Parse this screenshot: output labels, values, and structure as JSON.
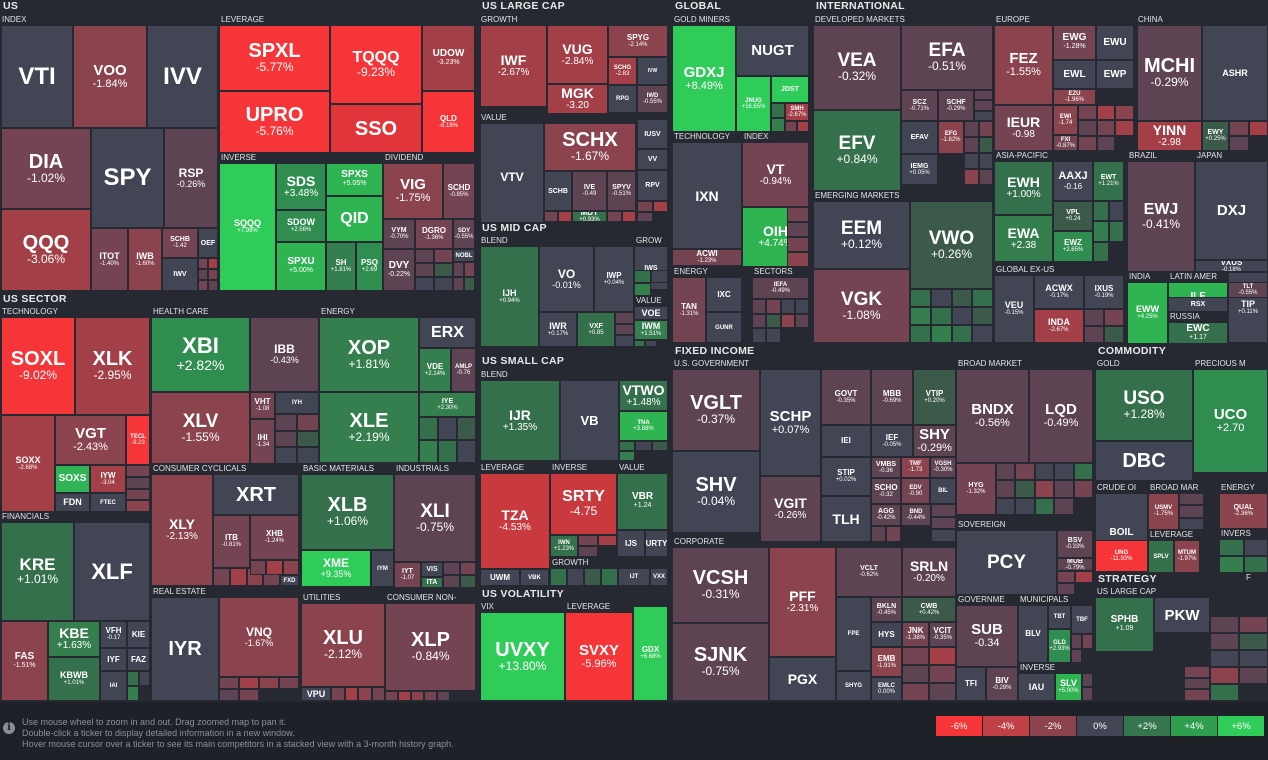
{
  "colors": {
    "-6": "#f63538",
    "-5": "#e4353a",
    "-4": "#bf4045",
    "-3": "#a94148",
    "-2": "#8b444e",
    "-1": "#6c4451",
    "-0.5": "#5a4452",
    "0": "#414554",
    "0.5": "#3c5148",
    "1": "#35764e",
    "1.5": "#3a7f4f",
    "2": "#2f9e4f",
    "3": "#30b455",
    "4": "#30cc5a",
    "6": "#30d85a"
  },
  "groups": [
    {
      "key": "us",
      "label": "US"
    },
    {
      "key": "ussector",
      "label": "US SECTOR"
    },
    {
      "key": "uslarge",
      "label": "US LARGE CAP"
    },
    {
      "key": "usmid",
      "label": "US MID CAP"
    },
    {
      "key": "ussmall",
      "label": "US SMALL CAP"
    },
    {
      "key": "usvol",
      "label": "US VOLATILITY"
    },
    {
      "key": "global",
      "label": "GLOBAL"
    },
    {
      "key": "intl",
      "label": "INTERNATIONAL"
    },
    {
      "key": "fixed",
      "label": "FIXED INCOME"
    },
    {
      "key": "commodity",
      "label": "COMMODITY"
    },
    {
      "key": "strategy",
      "label": "STRATEGY"
    }
  ],
  "subgroups": {
    "index": "INDEX",
    "leverage": "LEVERAGE",
    "inverse": "INVERSE",
    "dividend": "DIVIDEND",
    "technology": "TECHNOLOGY",
    "healthcare": "HEALTH CARE",
    "energy": "ENERGY",
    "consumer_cyclicals": "CONSUMER CYCLICALS",
    "basic_materials": "BASIC MATERIALS",
    "industrials": "INDUSTRIALS",
    "financials": "FINANCIALS",
    "real_estate": "REAL ESTATE",
    "utilities": "UTILITIES",
    "consumer_non": "CONSUMER NON-",
    "growth": "GROWTH",
    "value": "VALUE",
    "blend": "BLEND",
    "grow": "GROW",
    "lev2": "LEVERAGE",
    "inv2": "INVERSE",
    "val2": "VALUE",
    "growth2": "GROWTH",
    "vix": "VIX",
    "lev3": "LEVERAGE",
    "gold_miners": "GOLD MINERS",
    "tech2": "TECHNOLOGY",
    "index2": "INDEX",
    "energy2": "ENERGY",
    "sectors": "SECTORS",
    "developed": "DEVELOPED MARKETS",
    "emerging": "EMERGING MARKETS",
    "europe": "EUROPE",
    "china": "CHINA",
    "asia_pacific": "ASIA-PACIFIC",
    "brazil": "BRAZIL",
    "japan": "JAPAN",
    "global_ex_us": "GLOBAL EX-US",
    "india": "INDIA",
    "latin_amer": "LATIN AMER",
    "russia": "RUSSIA",
    "us_government": "U.S. GOVERNMENT",
    "broad_market": "BROAD MARKET",
    "corporate": "CORPORATE",
    "sovereign": "SOVEREIGN",
    "governme": "GOVERNME",
    "municipals": "MUNICIPALS",
    "inverse3": "INVERSE",
    "gold": "GOLD",
    "precious": "PRECIOUS M",
    "crude": "CRUDE OI",
    "broad_mar": "BROAD MAR",
    "energy3": "ENERGY",
    "lev4": "LEVERAGE",
    "invers": "INVERS",
    "us_large_cap2": "US LARGE CAP",
    "f": "F"
  },
  "tickers": [
    {
      "t": "VTI",
      "c": ""
    },
    {
      "t": "VOO",
      "c": "-1.84%"
    },
    {
      "t": "IVV",
      "c": ""
    },
    {
      "t": "DIA",
      "c": "-1.02%"
    },
    {
      "t": "SPY",
      "c": ""
    },
    {
      "t": "RSP",
      "c": "-0.26%"
    },
    {
      "t": "QQQ",
      "c": "-3.06%"
    },
    {
      "t": "ITOT",
      "c": "-1.40%"
    },
    {
      "t": "IWB",
      "c": "-1.60%"
    },
    {
      "t": "SCHB",
      "c": "-1.42"
    },
    {
      "t": "OEF",
      "c": ""
    },
    {
      "t": "IWV",
      "c": ""
    },
    {
      "t": "SPXL",
      "c": "-5.77%"
    },
    {
      "t": "TQQQ",
      "c": "-9.23%"
    },
    {
      "t": "UDOW",
      "c": "-3.23%"
    },
    {
      "t": "UPRO",
      "c": "-5.76%"
    },
    {
      "t": "SSO",
      "c": ""
    },
    {
      "t": "QLD",
      "c": "-6.18%"
    },
    {
      "t": "SQQQ",
      "c": "+7.96%"
    },
    {
      "t": "SDS",
      "c": "+3.48%"
    },
    {
      "t": "SPXS",
      "c": "+5.05%"
    },
    {
      "t": "SDOW",
      "c": "+2.56%"
    },
    {
      "t": "QID",
      "c": ""
    },
    {
      "t": "SPXU",
      "c": "+5.00%"
    },
    {
      "t": "SH",
      "c": "+1.81%"
    },
    {
      "t": "PSQ",
      "c": "+2.69"
    },
    {
      "t": "VIG",
      "c": "-1.75%"
    },
    {
      "t": "SCHD",
      "c": "-0.85%"
    },
    {
      "t": "VYM",
      "c": "-0.70%"
    },
    {
      "t": "DGRO",
      "c": "-1.36%"
    },
    {
      "t": "SDY",
      "c": "-0.55%"
    },
    {
      "t": "NOBL",
      "c": ""
    },
    {
      "t": "DVY",
      "c": "-0.22%"
    },
    {
      "t": "SOXL",
      "c": "-9.02%"
    },
    {
      "t": "XLK",
      "c": "-2.95%"
    },
    {
      "t": "SOXX",
      "c": "-2.68%"
    },
    {
      "t": "VGT",
      "c": "-2.43%"
    },
    {
      "t": "TECL",
      "c": "-9.23"
    },
    {
      "t": "SOXS",
      "c": ""
    },
    {
      "t": "IYW",
      "c": "-3.04"
    },
    {
      "t": "FDN",
      "c": ""
    },
    {
      "t": "FTEC",
      "c": ""
    },
    {
      "t": "XBI",
      "c": "+2.82%"
    },
    {
      "t": "IBB",
      "c": "-0.43%"
    },
    {
      "t": "XLV",
      "c": "-1.55%"
    },
    {
      "t": "VHT",
      "c": "-1.08"
    },
    {
      "t": "IYH",
      "c": ""
    },
    {
      "t": "IHI",
      "c": "-1.34"
    },
    {
      "t": "XOP",
      "c": "+1.81%"
    },
    {
      "t": "ERX",
      "c": ""
    },
    {
      "t": "VDE",
      "c": "+2.14%"
    },
    {
      "t": "AMLP",
      "c": "-0.76"
    },
    {
      "t": "XLE",
      "c": "+2.19%"
    },
    {
      "t": "IYE",
      "c": "+2.30%"
    },
    {
      "t": "XRT",
      "c": ""
    },
    {
      "t": "XLY",
      "c": "-2.13%"
    },
    {
      "t": "ITB",
      "c": "-0.81%"
    },
    {
      "t": "XHB",
      "c": "-1.24%"
    },
    {
      "t": "FXD",
      "c": ""
    },
    {
      "t": "XLB",
      "c": "+1.06%"
    },
    {
      "t": "XME",
      "c": "+9.35%"
    },
    {
      "t": "IYM",
      "c": ""
    },
    {
      "t": "XLI",
      "c": "-0.75%"
    },
    {
      "t": "IYT",
      "c": "-1.07"
    },
    {
      "t": "VIS",
      "c": ""
    },
    {
      "t": "ITA",
      "c": ""
    },
    {
      "t": "KRE",
      "c": "+1.01%"
    },
    {
      "t": "XLF",
      "c": ""
    },
    {
      "t": "FAS",
      "c": "-1.51%"
    },
    {
      "t": "KBE",
      "c": "+1.63%"
    },
    {
      "t": "VFH",
      "c": "-0.17"
    },
    {
      "t": "KIE",
      "c": ""
    },
    {
      "t": "IYF",
      "c": ""
    },
    {
      "t": "FAZ",
      "c": ""
    },
    {
      "t": "KBWB",
      "c": "+1.01%"
    },
    {
      "t": "IAI",
      "c": ""
    },
    {
      "t": "IYR",
      "c": ""
    },
    {
      "t": "VNQ",
      "c": "-1.67%"
    },
    {
      "t": "XLU",
      "c": "-2.12%"
    },
    {
      "t": "VPU",
      "c": ""
    },
    {
      "t": "XLP",
      "c": "-0.84%"
    },
    {
      "t": "IWF",
      "c": "-2.67%"
    },
    {
      "t": "VUG",
      "c": "-2.84%"
    },
    {
      "t": "SPYG",
      "c": "-2.14%"
    },
    {
      "t": "SCHG",
      "c": "-2.83"
    },
    {
      "t": "IVW",
      "c": ""
    },
    {
      "t": "MGK",
      "c": "-3.20"
    },
    {
      "t": "RPG",
      "c": ""
    },
    {
      "t": "IWD",
      "c": "-0.55%"
    },
    {
      "t": "VTV",
      "c": ""
    },
    {
      "t": "SCHX",
      "c": "-1.67%"
    },
    {
      "t": "SCHB",
      "c": ""
    },
    {
      "t": "IVE",
      "c": "-0.49"
    },
    {
      "t": "SPYV",
      "c": "-0.51%"
    },
    {
      "t": "IUSV",
      "c": ""
    },
    {
      "t": "VV",
      "c": ""
    },
    {
      "t": "RPV",
      "c": ""
    },
    {
      "t": "MDY",
      "c": "+0.93%"
    },
    {
      "t": "IJH",
      "c": "+0.94%"
    },
    {
      "t": "VO",
      "c": "-0.01%"
    },
    {
      "t": "IWP",
      "c": "+0.04%"
    },
    {
      "t": "IWR",
      "c": "+0.17%"
    },
    {
      "t": "VXF",
      "c": "+0.85"
    },
    {
      "t": "IWS",
      "c": ""
    },
    {
      "t": "VOE",
      "c": ""
    },
    {
      "t": "IWM",
      "c": "+1.51%"
    },
    {
      "t": "IJR",
      "c": "+1.35%"
    },
    {
      "t": "VB",
      "c": ""
    },
    {
      "t": "VTWO",
      "c": "+1.48%"
    },
    {
      "t": "TNA",
      "c": "+3.88%"
    },
    {
      "t": "TZA",
      "c": "-4.53%"
    },
    {
      "t": "SRTY",
      "c": "-4.75"
    },
    {
      "t": "IWN",
      "c": "+1.23%"
    },
    {
      "t": "VBR",
      "c": "+1.24"
    },
    {
      "t": "IJS",
      "c": ""
    },
    {
      "t": "URTY",
      "c": ""
    },
    {
      "t": "UWM",
      "c": ""
    },
    {
      "t": "VBK",
      "c": ""
    },
    {
      "t": "IJT",
      "c": ""
    },
    {
      "t": "VXX",
      "c": ""
    },
    {
      "t": "UVXY",
      "c": "+13.80%"
    },
    {
      "t": "SVXY",
      "c": "-5.96%"
    },
    {
      "t": "GDX",
      "c": "+6.68%"
    },
    {
      "t": "GDXJ",
      "c": "+8.49%"
    },
    {
      "t": "NUGT",
      "c": ""
    },
    {
      "t": "JNUG",
      "c": "+16.65%"
    },
    {
      "t": "JDST",
      "c": ""
    },
    {
      "t": "SMH",
      "c": "-2.67%"
    },
    {
      "t": "IXN",
      "c": ""
    },
    {
      "t": "ACWI",
      "c": "-1.23%"
    },
    {
      "t": "VT",
      "c": "-0.94%"
    },
    {
      "t": "OIH",
      "c": "+4.74%"
    },
    {
      "t": "TAN",
      "c": "-1.31%"
    },
    {
      "t": "IXC",
      "c": ""
    },
    {
      "t": "GUNR",
      "c": ""
    },
    {
      "t": "IEFA",
      "c": "-0.49%"
    },
    {
      "t": "VEA",
      "c": "-0.32%"
    },
    {
      "t": "EFA",
      "c": "-0.51%"
    },
    {
      "t": "EFV",
      "c": "+0.84%"
    },
    {
      "t": "SCZ",
      "c": "-0.71%"
    },
    {
      "t": "SCHF",
      "c": "-0.29%"
    },
    {
      "t": "EFAV",
      "c": ""
    },
    {
      "t": "EFG",
      "c": "-1.82%"
    },
    {
      "t": "IEMG",
      "c": "+0.05%"
    },
    {
      "t": "EEM",
      "c": "+0.12%"
    },
    {
      "t": "VWO",
      "c": "+0.26%"
    },
    {
      "t": "VGK",
      "c": "-1.08%"
    },
    {
      "t": "FEZ",
      "c": "-1.55%"
    },
    {
      "t": "EWG",
      "c": "-1.28%"
    },
    {
      "t": "EWU",
      "c": ""
    },
    {
      "t": "EWL",
      "c": ""
    },
    {
      "t": "EWP",
      "c": ""
    },
    {
      "t": "EZU",
      "c": "-1.96%"
    },
    {
      "t": "IEUR",
      "c": "-0.98"
    },
    {
      "t": "EWI",
      "c": "-1.74"
    },
    {
      "t": "FXI",
      "c": "-0.87%"
    },
    {
      "t": "MCHI",
      "c": "-0.29%"
    },
    {
      "t": "ASHR",
      "c": ""
    },
    {
      "t": "YINN",
      "c": "-2.98"
    },
    {
      "t": "EWY",
      "c": "+0.25%"
    },
    {
      "t": "EWH",
      "c": "+1.00%"
    },
    {
      "t": "AAXJ",
      "c": "-0.16"
    },
    {
      "t": "EWT",
      "c": "+1.21%"
    },
    {
      "t": "EWA",
      "c": "+2.38"
    },
    {
      "t": "VPL",
      "c": "+0.24"
    },
    {
      "t": "EWZ",
      "c": "+2.65%"
    },
    {
      "t": "EWJ",
      "c": "-0.41%"
    },
    {
      "t": "DXJ",
      "c": ""
    },
    {
      "t": "VXUS",
      "c": "-0.18%"
    },
    {
      "t": "VEU",
      "c": "-0.15%"
    },
    {
      "t": "ACWX",
      "c": "-0.17%"
    },
    {
      "t": "IXUS",
      "c": "-0.19%"
    },
    {
      "t": "INDA",
      "c": "-2.67%"
    },
    {
      "t": "EWW",
      "c": "+4.25%"
    },
    {
      "t": "ILF",
      "c": ""
    },
    {
      "t": "RSX",
      "c": ""
    },
    {
      "t": "EWC",
      "c": "+1.17"
    },
    {
      "t": "TIP",
      "c": "+0.11%"
    },
    {
      "t": "TLT",
      "c": "-0.55%"
    },
    {
      "t": "VGLT",
      "c": "-0.37%"
    },
    {
      "t": "SCHP",
      "c": "+0.07%"
    },
    {
      "t": "GOVT",
      "c": "-0.35%"
    },
    {
      "t": "MBB",
      "c": "-0.69%"
    },
    {
      "t": "VTIP",
      "c": "+0.20%"
    },
    {
      "t": "IEI",
      "c": ""
    },
    {
      "t": "IEF",
      "c": "-0.05%"
    },
    {
      "t": "SHY",
      "c": "-0.29%"
    },
    {
      "t": "SHV",
      "c": "-0.04%"
    },
    {
      "t": "STIP",
      "c": "+0.02%"
    },
    {
      "t": "VMBS",
      "c": "-0.36"
    },
    {
      "t": "TMF",
      "c": "-1.73"
    },
    {
      "t": "VGSH",
      "c": "-0.30%"
    },
    {
      "t": "SCHO",
      "c": "-0.32"
    },
    {
      "t": "EDV",
      "c": "-0.90"
    },
    {
      "t": "BIL",
      "c": ""
    },
    {
      "t": "VGIT",
      "c": "-0.26%"
    },
    {
      "t": "TLH",
      "c": ""
    },
    {
      "t": "AGG",
      "c": "-0.42%"
    },
    {
      "t": "BND",
      "c": "-0.44%"
    },
    {
      "t": "BNDX",
      "c": "-0.56%"
    },
    {
      "t": "LQD",
      "c": "-0.49%"
    },
    {
      "t": "HYG",
      "c": "-1.32%"
    },
    {
      "t": "VCSH",
      "c": "-0.31%"
    },
    {
      "t": "PFF",
      "c": "-2.31%"
    },
    {
      "t": "VCLT",
      "c": "-0.62%"
    },
    {
      "t": "SRLN",
      "c": "-0.20%"
    },
    {
      "t": "BKLN",
      "c": "-0.45%"
    },
    {
      "t": "CWB",
      "c": "+0.42%"
    },
    {
      "t": "FPE",
      "c": ""
    },
    {
      "t": "HYS",
      "c": ""
    },
    {
      "t": "JNK",
      "c": "-1.38%"
    },
    {
      "t": "VCIT",
      "c": "-0.35%"
    },
    {
      "t": "SJNK",
      "c": "-0.75%"
    },
    {
      "t": "PGX",
      "c": ""
    },
    {
      "t": "SHYG",
      "c": ""
    },
    {
      "t": "EMB",
      "c": "-1.91%"
    },
    {
      "t": "EMLC",
      "c": "0.00%"
    },
    {
      "t": "PCY",
      "c": ""
    },
    {
      "t": "BSV",
      "c": "-0.33%"
    },
    {
      "t": "MUB",
      "c": "-0.79%"
    },
    {
      "t": "SUB",
      "c": "-0.34"
    },
    {
      "t": "TFI",
      "c": ""
    },
    {
      "t": "BIV",
      "c": "-0.28%"
    },
    {
      "t": "BLV",
      "c": ""
    },
    {
      "t": "TBT",
      "c": ""
    },
    {
      "t": "TBF",
      "c": ""
    },
    {
      "t": "GLD",
      "c": "+2.93%"
    },
    {
      "t": "IAU",
      "c": ""
    },
    {
      "t": "SLV",
      "c": "+5.00%"
    },
    {
      "t": "USO",
      "c": "+1.28%"
    },
    {
      "t": "DBC",
      "c": ""
    },
    {
      "t": "UCO",
      "c": "+2.70"
    },
    {
      "t": "BOIL",
      "c": ""
    },
    {
      "t": "UNG",
      "c": "-11.93%"
    },
    {
      "t": "USMV",
      "c": "-1.75%"
    },
    {
      "t": "SPLV",
      "c": ""
    },
    {
      "t": "MTUM",
      "c": "-1.97%"
    },
    {
      "t": "QUAL",
      "c": "-2.36%"
    },
    {
      "t": "SPHB",
      "c": "+1.09"
    },
    {
      "t": "PKW",
      "c": ""
    }
  ],
  "footer": {
    "info_icon": "info-icon",
    "hint1": "Use mouse wheel to zoom in and out. Drag zoomed map to pan it.",
    "hint2": "Double-click a ticker to display detailed information in a new window.",
    "hint3": "Hover mouse cursor over a ticker to see its main competitors in a stacked view with a 3-month history graph."
  },
  "legend": [
    "-6%",
    "-4%",
    "-2%",
    "0%",
    "+2%",
    "+4%",
    "+6%"
  ]
}
